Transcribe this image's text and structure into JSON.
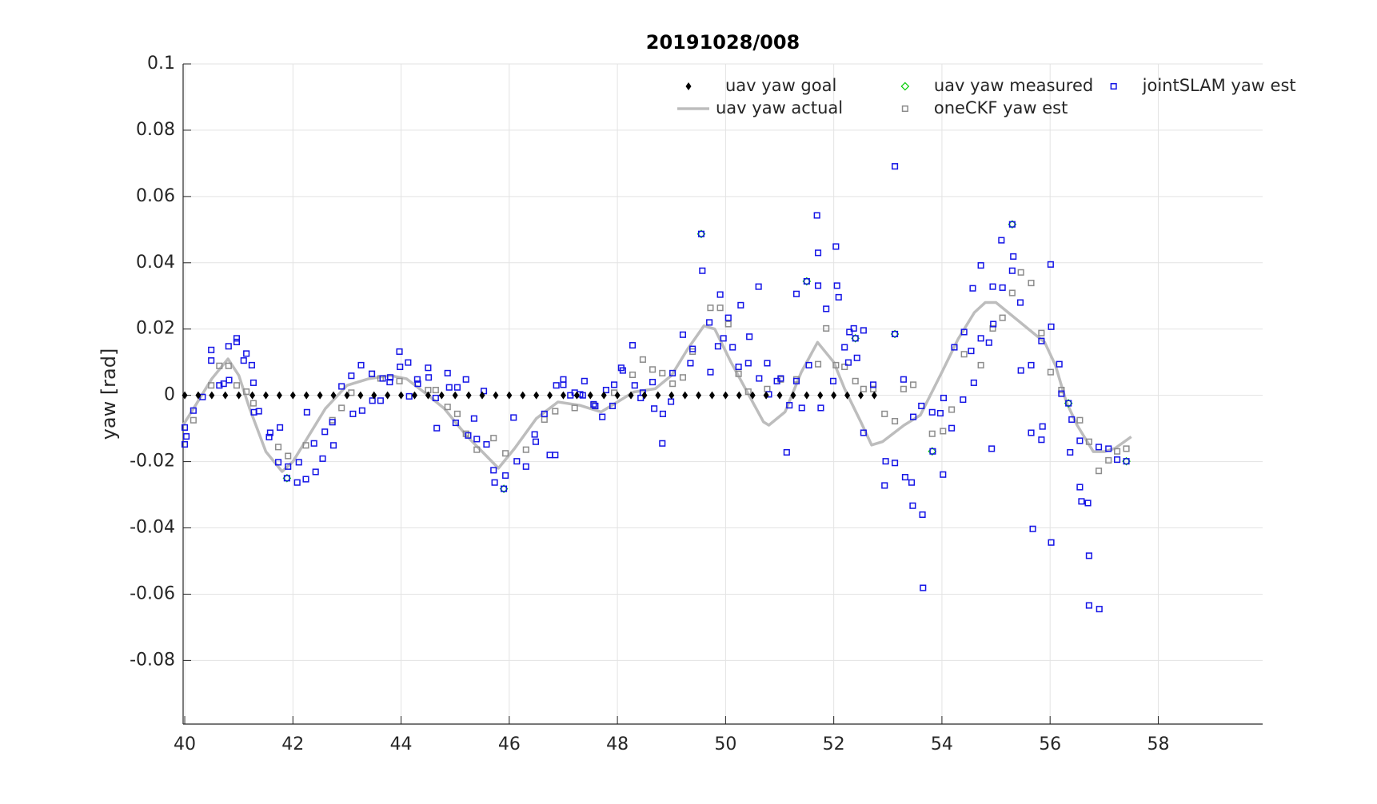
{
  "chart_data": {
    "type": "scatter",
    "title": "20191028/008",
    "y_label": "yaw [rad]",
    "xlim": [
      39.97,
      59.93
    ],
    "ylim": [
      -0.0992,
      0.1
    ],
    "xticks": [
      40,
      42,
      44,
      46,
      48,
      50,
      52,
      54,
      56,
      58
    ],
    "yticks": [
      -0.08,
      -0.06,
      -0.04,
      -0.02,
      0,
      0.02,
      0.04,
      0.06,
      0.08,
      0.1
    ],
    "grid": true,
    "legend": "northeast",
    "series": [
      {
        "name": "uav yaw goal",
        "color": "#000000",
        "marker": "diamond",
        "x": [
          40,
          40.25,
          40.5,
          40.75,
          41,
          41.25,
          41.5,
          41.75,
          42,
          42.25,
          42.5,
          42.75,
          43,
          43.25,
          43.5,
          43.75,
          44,
          44.25,
          44.5,
          44.75,
          45,
          45.25,
          45.5,
          45.75,
          46,
          46.25,
          46.5,
          46.75,
          47,
          47.25,
          47.5,
          47.75,
          48,
          48.25,
          48.5,
          48.75,
          49,
          49.25,
          49.5,
          49.75,
          50,
          50.25,
          50.5,
          50.75,
          51,
          51.25,
          51.5,
          51.75,
          52,
          52.25,
          52.5,
          52.75
        ],
        "values": [
          0,
          0,
          0,
          0,
          0,
          0,
          0,
          0,
          0,
          0,
          0,
          0,
          0,
          0,
          0,
          0,
          0,
          0,
          0,
          0,
          0,
          0,
          0,
          0,
          0,
          0,
          0,
          0,
          0,
          0,
          0,
          0,
          0,
          0,
          0,
          0,
          0,
          0,
          0,
          0,
          0,
          0,
          0,
          0,
          0,
          0,
          0,
          0,
          0,
          0,
          0,
          0
        ]
      },
      {
        "name": "uav yaw actual",
        "color": "#bdbdbd",
        "marker": "line",
        "x": [
          39.97,
          40.2,
          40.5,
          40.8,
          41.0,
          41.2,
          41.5,
          41.8,
          42.0,
          42.3,
          42.6,
          43.0,
          43.4,
          43.8,
          44.1,
          44.5,
          44.8,
          45.2,
          45.5,
          45.8,
          46.1,
          46.5,
          46.9,
          47.3,
          47.7,
          48.0,
          48.3,
          48.7,
          49.0,
          49.3,
          49.6,
          49.8,
          50.1,
          50.4,
          50.7,
          50.8,
          51.1,
          51.4,
          51.7,
          52.0,
          52.2,
          52.5,
          52.7,
          52.9,
          53.3,
          53.6,
          54.0,
          54.3,
          54.6,
          54.8,
          55.0,
          55.3,
          55.6,
          55.9,
          56.1,
          56.3,
          56.5,
          56.8,
          57.0,
          57.2,
          57.5
        ],
        "values": [
          -0.009,
          -0.003,
          0.005,
          0.011,
          0.006,
          -0.004,
          -0.017,
          -0.023,
          -0.02,
          -0.012,
          -0.004,
          0.003,
          0.005,
          0.006,
          0.005,
          0,
          -0.004,
          -0.012,
          -0.017,
          -0.022,
          -0.016,
          -0.007,
          -0.002,
          -0.003,
          -0.005,
          -0.002,
          0.001,
          0.002,
          0.006,
          0.014,
          0.021,
          0.02,
          0.01,
          0.001,
          -0.008,
          -0.009,
          -0.005,
          0.007,
          0.016,
          0.01,
          0.002,
          -0.008,
          -0.015,
          -0.014,
          -0.009,
          -0.006,
          0.007,
          0.017,
          0.025,
          0.028,
          0.028,
          0.024,
          0.02,
          0.016,
          0.009,
          -0.002,
          -0.009,
          -0.017,
          -0.017,
          -0.016,
          -0.0125
        ]
      },
      {
        "name": "uav yaw measured",
        "color": "#00cc00",
        "marker": "circle",
        "x": [
          41.89,
          45.9,
          49.55,
          51.5,
          52.4,
          53.13,
          53.82,
          55.3,
          56.34,
          57.41
        ],
        "values": [
          -0.025,
          -0.0282,
          0.0487,
          0.0344,
          0.0172,
          0.0185,
          -0.0169,
          0.0516,
          -0.0024,
          -0.0199
        ]
      },
      {
        "name": "oneCKF yaw est",
        "color": "#8c8c8c",
        "marker": "square",
        "x": [
          40.16,
          40.49,
          40.64,
          40.81,
          40.96,
          41.14,
          41.27,
          41.73,
          41.91,
          42.24,
          42.73,
          42.9,
          43.08,
          43.46,
          43.62,
          43.97,
          44.5,
          44.64,
          44.86,
          45.04,
          45.2,
          45.4,
          45.71,
          45.93,
          46.31,
          46.65,
          46.85,
          47.21,
          47.56,
          47.94,
          48.28,
          48.47,
          48.65,
          48.83,
          49.02,
          49.21,
          49.39,
          49.72,
          49.9,
          50.05,
          50.24,
          50.42,
          50.77,
          51.02,
          51.31,
          51.71,
          51.86,
          52.04,
          52.2,
          52.4,
          52.55,
          52.73,
          52.94,
          53.13,
          53.29,
          53.47,
          53.82,
          54.02,
          54.18,
          54.41,
          54.72,
          54.94,
          55.12,
          55.3,
          55.46,
          55.65,
          55.84,
          56.01,
          56.21,
          56.55,
          56.72,
          56.9,
          57.08,
          57.24,
          57.41
        ],
        "values": [
          -0.0075,
          0.003,
          0.0089,
          0.0089,
          0.003,
          0.0011,
          -0.0024,
          -0.0156,
          -0.0183,
          -0.0151,
          -0.0075,
          -0.0038,
          0.0008,
          0.0065,
          0.0051,
          0.0043,
          0.0016,
          0.0016,
          -0.0035,
          -0.0056,
          -0.0116,
          -0.0164,
          -0.0129,
          -0.0175,
          -0.0164,
          -0.0073,
          -0.0048,
          -0.0038,
          -0.003,
          0.0008,
          0.0062,
          0.0108,
          0.0078,
          0.0067,
          0.0035,
          0.0054,
          0.0132,
          0.0264,
          0.0264,
          0.0215,
          0.0065,
          0.0011,
          0.0019,
          0.0048,
          0.0048,
          0.0094,
          0.0202,
          0.0091,
          0.0086,
          0.0043,
          0.0019,
          0.0019,
          -0.0056,
          -0.0078,
          0.0019,
          0.0032,
          -0.0116,
          -0.0108,
          -0.0043,
          0.0124,
          0.0091,
          0.0202,
          0.0234,
          0.0309,
          0.0371,
          0.0339,
          0.0188,
          0.007,
          0.0016,
          -0.0075,
          -0.014,
          -0.0228,
          -0.0196,
          -0.0169,
          -0.0161
        ]
      },
      {
        "name": "jointSLAM yaw est",
        "color": "#1414e6",
        "marker": "square",
        "x": [
          40.0,
          40.03,
          40.0,
          40.16,
          40.33,
          40.49,
          40.49,
          40.64,
          40.72,
          40.81,
          40.82,
          40.96,
          40.96,
          41.09,
          41.14,
          41.24,
          41.27,
          41.28,
          41.37,
          41.56,
          41.58,
          41.73,
          41.76,
          41.89,
          41.91,
          42.08,
          42.11,
          42.24,
          42.26,
          42.39,
          42.42,
          42.55,
          42.59,
          42.73,
          42.75,
          42.9,
          43.08,
          43.11,
          43.26,
          43.28,
          43.46,
          43.47,
          43.62,
          43.66,
          43.79,
          43.8,
          43.97,
          43.98,
          44.13,
          44.15,
          44.3,
          44.31,
          44.5,
          44.51,
          44.64,
          44.66,
          44.86,
          44.89,
          45.01,
          45.04,
          45.2,
          45.24,
          45.35,
          45.4,
          45.53,
          45.58,
          45.71,
          45.73,
          45.9,
          45.93,
          46.08,
          46.14,
          46.31,
          46.47,
          46.49,
          46.65,
          46.75,
          46.85,
          46.87,
          47.0,
          47.0,
          47.13,
          47.21,
          47.31,
          47.36,
          47.39,
          47.56,
          47.59,
          47.72,
          47.79,
          47.94,
          47.91,
          48.07,
          48.1,
          48.28,
          48.32,
          48.43,
          48.47,
          48.65,
          48.68,
          48.83,
          48.84,
          48.99,
          49.02,
          49.21,
          49.35,
          49.39,
          49.55,
          49.57,
          49.7,
          49.72,
          49.86,
          49.9,
          49.96,
          50.05,
          50.13,
          50.24,
          50.28,
          50.42,
          50.44,
          50.61,
          50.62,
          50.77,
          50.8,
          50.95,
          51.02,
          51.13,
          51.18,
          51.31,
          51.31,
          51.41,
          51.5,
          51.54,
          51.69,
          51.71,
          51.71,
          51.76,
          51.86,
          51.99,
          52.04,
          52.06,
          52.09,
          52.2,
          52.27,
          52.29,
          52.37,
          52.4,
          52.43,
          52.55,
          52.55,
          52.73,
          52.94,
          52.96,
          53.13,
          53.13,
          53.13,
          53.29,
          53.32,
          53.44,
          53.47,
          53.46,
          53.62,
          53.64,
          53.65,
          53.82,
          53.83,
          53.97,
          54.02,
          54.03,
          54.18,
          54.23,
          54.39,
          54.41,
          54.54,
          54.57,
          54.59,
          54.72,
          54.72,
          54.87,
          54.92,
          54.94,
          54.95,
          55.12,
          55.1,
          55.3,
          55.32,
          55.3,
          55.45,
          55.46,
          55.65,
          55.65,
          55.68,
          55.84,
          55.84,
          55.86,
          56.01,
          56.02,
          56.02,
          56.17,
          56.21,
          56.34,
          56.37,
          56.4,
          56.55,
          56.55,
          56.58,
          56.7,
          56.72,
          56.72,
          56.9,
          56.91,
          57.08,
          57.24,
          57.41
        ],
        "values": [
          -0.0097,
          -0.0124,
          -0.0148,
          -0.0046,
          -0.0005,
          0.0137,
          0.0105,
          0.003,
          0.0035,
          0.0148,
          0.0046,
          0.0161,
          0.0172,
          0.0105,
          0.0126,
          0.0091,
          0.0038,
          -0.0051,
          -0.0048,
          -0.0126,
          -0.0113,
          -0.0202,
          -0.0097,
          -0.025,
          -0.0215,
          -0.0263,
          -0.0202,
          -0.0253,
          -0.0051,
          -0.0145,
          -0.0231,
          -0.0191,
          -0.011,
          -0.0081,
          -0.0151,
          0.0027,
          0.0059,
          -0.0056,
          0.0091,
          -0.0046,
          0.0065,
          -0.0016,
          -0.0016,
          0.0051,
          0.004,
          0.0054,
          0.0132,
          0.0086,
          0.0099,
          -0.0003,
          0.0048,
          0.0035,
          0.0083,
          0.0054,
          -0.0008,
          -0.0099,
          0.0067,
          0.0024,
          -0.0083,
          0.0024,
          0.0048,
          -0.0121,
          -0.007,
          -0.0132,
          0.0013,
          -0.0148,
          -0.0226,
          -0.0263,
          -0.0282,
          -0.0242,
          -0.0067,
          -0.0199,
          -0.0215,
          -0.0118,
          -0.014,
          -0.0056,
          -0.018,
          -0.018,
          0.003,
          0.0048,
          0.0032,
          0,
          0.0008,
          0.0003,
          0,
          0.0043,
          -0.0027,
          -0.0032,
          -0.0065,
          0.0016,
          0.0032,
          -0.0032,
          0.0083,
          0.0075,
          0.0151,
          0.003,
          -0.0008,
          0.0008,
          0.004,
          -0.004,
          -0.0145,
          -0.0056,
          -0.0019,
          0.0067,
          0.0183,
          0.0097,
          0.014,
          0.0487,
          0.0376,
          0.022,
          0.007,
          0.0148,
          0.0304,
          0.0172,
          0.0234,
          0.0145,
          0.0086,
          0.0272,
          0.0097,
          0.0177,
          0.0328,
          0.0051,
          0.0097,
          0.0003,
          0.0043,
          0.0051,
          -0.0172,
          -0.003,
          0.0043,
          0.0306,
          -0.0038,
          0.0344,
          0.0091,
          0.0543,
          0.043,
          0.0331,
          -0.0038,
          0.0261,
          0.0043,
          0.0449,
          0.0331,
          0.0296,
          0.0145,
          0.0099,
          0.0191,
          0.0202,
          0.0172,
          0.0113,
          0.0196,
          -0.0113,
          0.0032,
          -0.0272,
          -0.0199,
          0.0691,
          0.0185,
          -0.0204,
          0.0048,
          -0.0247,
          -0.0263,
          -0.0065,
          -0.0333,
          -0.0032,
          -0.036,
          -0.0581,
          -0.0051,
          -0.0169,
          -0.0054,
          -0.0239,
          -0.0008,
          -0.0099,
          0.0145,
          -0.0013,
          0.0191,
          0.0134,
          0.0323,
          0.0038,
          0.0392,
          0.0172,
          0.0159,
          -0.0161,
          0.0328,
          0.0215,
          0.0325,
          0.0468,
          0.0516,
          0.0419,
          0.0376,
          0.028,
          0.0075,
          0.0091,
          -0.0113,
          -0.0403,
          0.0164,
          -0.0134,
          -0.0094,
          0.0395,
          0.0207,
          -0.0444,
          0.0094,
          0.0005,
          -0.0024,
          -0.0172,
          -0.0073,
          -0.0137,
          -0.0277,
          -0.032,
          -0.0325,
          -0.0484,
          -0.0634,
          -0.0156,
          -0.0645,
          -0.0161,
          -0.0194,
          -0.0199
        ]
      }
    ]
  }
}
